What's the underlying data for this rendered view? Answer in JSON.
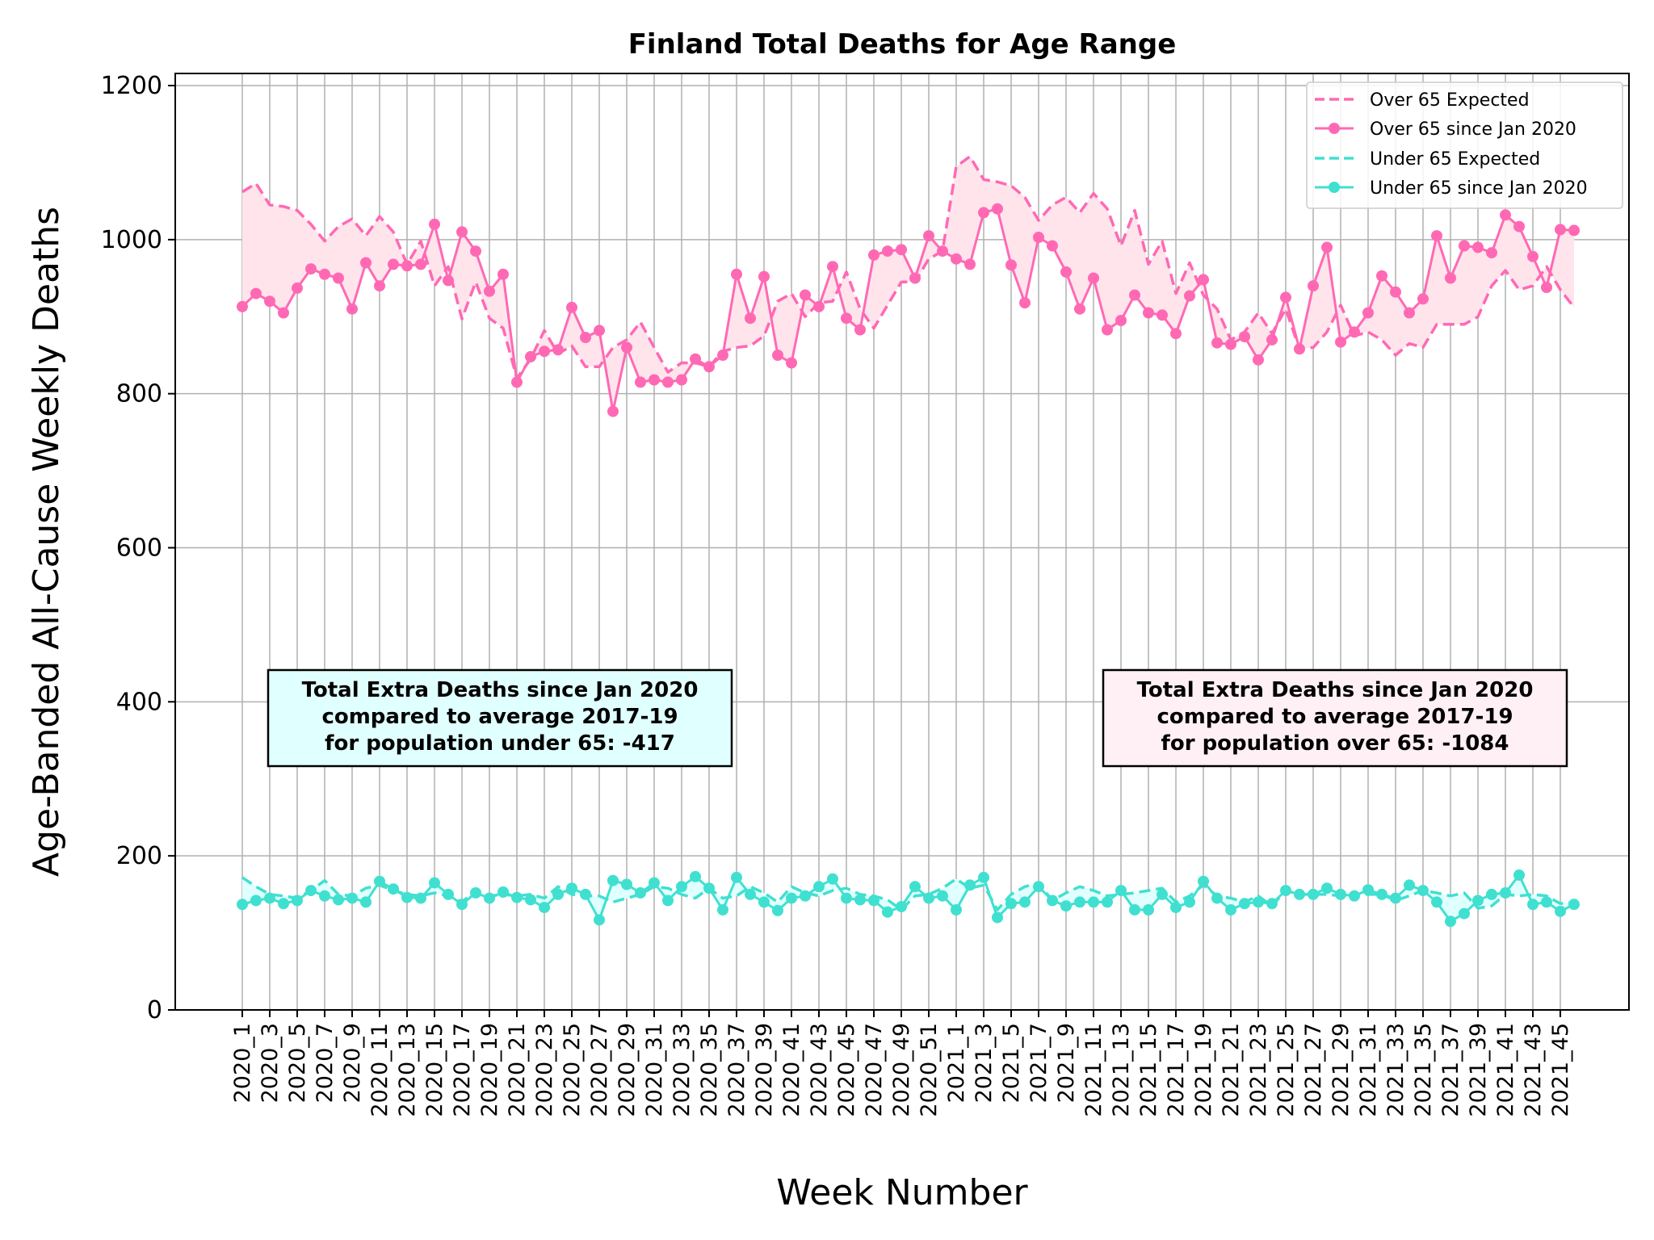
{
  "chart_data": {
    "type": "line",
    "title": "Finland Total Deaths for Age Range",
    "xlabel": "Week Number",
    "ylabel": "Age-Banded All-Cause Weekly Deaths",
    "ylim": [
      0,
      1200
    ],
    "yticks": [
      0,
      200,
      400,
      600,
      800,
      1000,
      1200
    ],
    "grid": true,
    "legend_position": "top-right",
    "colors": {
      "over65": "#ff69b4",
      "under65": "#40e0d0",
      "over65_fill": "#ffe4ec",
      "under65_fill": "#e0ffff",
      "grid": "#b0b0b0"
    },
    "x": [
      "2020_1",
      "2020_2",
      "2020_3",
      "2020_4",
      "2020_5",
      "2020_6",
      "2020_7",
      "2020_8",
      "2020_9",
      "2020_10",
      "2020_11",
      "2020_12",
      "2020_13",
      "2020_14",
      "2020_15",
      "2020_16",
      "2020_17",
      "2020_18",
      "2020_19",
      "2020_20",
      "2020_21",
      "2020_22",
      "2020_23",
      "2020_24",
      "2020_25",
      "2020_26",
      "2020_27",
      "2020_28",
      "2020_29",
      "2020_30",
      "2020_31",
      "2020_32",
      "2020_33",
      "2020_34",
      "2020_35",
      "2020_36",
      "2020_37",
      "2020_38",
      "2020_39",
      "2020_40",
      "2020_41",
      "2020_42",
      "2020_43",
      "2020_44",
      "2020_45",
      "2020_46",
      "2020_47",
      "2020_48",
      "2020_49",
      "2020_50",
      "2020_51",
      "2020_52",
      "2021_1",
      "2021_2",
      "2021_3",
      "2021_4",
      "2021_5",
      "2021_6",
      "2021_7",
      "2021_8",
      "2021_9",
      "2021_10",
      "2021_11",
      "2021_12",
      "2021_13",
      "2021_14",
      "2021_15",
      "2021_16",
      "2021_17",
      "2021_18",
      "2021_19",
      "2021_20",
      "2021_21",
      "2021_22",
      "2021_23",
      "2021_24",
      "2021_25",
      "2021_26",
      "2021_27",
      "2021_28",
      "2021_29",
      "2021_30",
      "2021_31",
      "2021_32",
      "2021_33",
      "2021_34",
      "2021_35",
      "2021_36",
      "2021_37",
      "2021_38",
      "2021_39",
      "2021_40",
      "2021_41",
      "2021_42",
      "2021_43",
      "2021_44",
      "2021_45",
      "2021_46"
    ],
    "xtick_labels": [
      "2020_1",
      "2020_3",
      "2020_5",
      "2020_7",
      "2020_9",
      "2020_11",
      "2020_13",
      "2020_15",
      "2020_17",
      "2020_19",
      "2020_21",
      "2020_23",
      "2020_25",
      "2020_27",
      "2020_29",
      "2020_31",
      "2020_33",
      "2020_35",
      "2020_37",
      "2020_39",
      "2020_41",
      "2020_43",
      "2020_45",
      "2020_47",
      "2020_49",
      "2020_51",
      "2021_1",
      "2021_3",
      "2021_5",
      "2021_7",
      "2021_9",
      "2021_11",
      "2021_13",
      "2021_15",
      "2021_17",
      "2021_19",
      "2021_21",
      "2021_23",
      "2021_25",
      "2021_27",
      "2021_29",
      "2021_31",
      "2021_33",
      "2021_35",
      "2021_37",
      "2021_39",
      "2021_41",
      "2021_43",
      "2021_45"
    ],
    "series": [
      {
        "name": "Over 65 Expected",
        "style": "dashed",
        "values": [
          1062,
          1073,
          1045,
          1043,
          1038,
          1020,
          998,
          1017,
          1027,
          1005,
          1030,
          1010,
          968,
          998,
          940,
          965,
          897,
          945,
          898,
          885,
          820,
          845,
          882,
          852,
          862,
          835,
          835,
          860,
          870,
          893,
          860,
          828,
          840,
          840,
          835,
          855,
          860,
          862,
          875,
          920,
          930,
          900,
          918,
          920,
          958,
          910,
          885,
          915,
          945,
          945,
          975,
          985,
          1095,
          1108,
          1078,
          1075,
          1070,
          1055,
          1025,
          1045,
          1055,
          1035,
          1060,
          1040,
          992,
          1038,
          968,
          998,
          930,
          970,
          928,
          910,
          870,
          880,
          905,
          878,
          910,
          858,
          860,
          880,
          915,
          875,
          880,
          870,
          850,
          865,
          860,
          890,
          890,
          890,
          900,
          940,
          960,
          935,
          940,
          965,
          935,
          912
        ]
      },
      {
        "name": "Over 65 since Jan 2020",
        "style": "solid-markers",
        "values": [
          913,
          930,
          920,
          905,
          937,
          962,
          955,
          950,
          910,
          970,
          940,
          968,
          966,
          968,
          1020,
          947,
          1010,
          985,
          933,
          955,
          815,
          848,
          855,
          857,
          912,
          873,
          882,
          777,
          860,
          815,
          818,
          815,
          818,
          845,
          835,
          850,
          955,
          898,
          952,
          850,
          840,
          928,
          913,
          965,
          898,
          883,
          980,
          985,
          987,
          950,
          1005,
          985,
          975,
          968,
          1035,
          1040,
          967,
          918,
          1003,
          992,
          958,
          910,
          950,
          883,
          895,
          928,
          905,
          902,
          878,
          927,
          948,
          866,
          864,
          874,
          844,
          870,
          925,
          858,
          940,
          990,
          867,
          880,
          905,
          953,
          932,
          905,
          923,
          1005,
          950,
          992,
          990,
          983,
          1032,
          1017,
          978,
          938,
          1013,
          1012
        ]
      },
      {
        "name": "Under 65 Expected",
        "style": "dashed",
        "values": [
          172,
          160,
          150,
          148,
          145,
          155,
          168,
          150,
          148,
          158,
          162,
          155,
          150,
          148,
          152,
          148,
          140,
          155,
          148,
          150,
          148,
          150,
          145,
          160,
          150,
          148,
          148,
          140,
          145,
          150,
          160,
          158,
          150,
          145,
          158,
          145,
          148,
          160,
          152,
          140,
          160,
          152,
          148,
          155,
          158,
          150,
          148,
          143,
          130,
          148,
          150,
          158,
          170,
          158,
          162,
          130,
          150,
          160,
          165,
          142,
          152,
          160,
          155,
          148,
          150,
          152,
          155,
          158,
          140,
          148,
          162,
          148,
          145,
          140,
          148,
          135,
          155,
          150,
          150,
          150,
          148,
          150,
          150,
          150,
          142,
          148,
          155,
          152,
          148,
          152,
          132,
          135,
          150,
          148,
          150,
          148,
          138,
          140
        ]
      },
      {
        "name": "Under 65 since Jan 2020",
        "style": "solid-markers",
        "values": [
          137,
          142,
          145,
          138,
          142,
          155,
          148,
          143,
          145,
          140,
          167,
          157,
          146,
          145,
          165,
          150,
          137,
          152,
          145,
          153,
          146,
          143,
          133,
          150,
          158,
          150,
          117,
          168,
          163,
          152,
          165,
          142,
          160,
          173,
          158,
          130,
          172,
          150,
          140,
          129,
          145,
          148,
          160,
          170,
          145,
          143,
          142,
          127,
          134,
          160,
          145,
          148,
          130,
          162,
          172,
          120,
          138,
          140,
          160,
          142,
          135,
          140,
          140,
          140,
          155,
          130,
          130,
          150,
          133,
          140,
          167,
          145,
          130,
          138,
          140,
          138,
          155,
          150,
          150,
          158,
          150,
          148,
          156,
          150,
          145,
          162,
          155,
          140,
          115,
          125,
          142,
          150,
          152,
          175,
          137,
          140,
          128,
          137
        ]
      }
    ],
    "annotations": [
      {
        "side": "left",
        "lines": [
          "Total Extra Deaths since Jan 2020",
          "compared to average 2017-19",
          "for population under 65: -417"
        ]
      },
      {
        "side": "right",
        "lines": [
          "Total Extra Deaths since Jan 2020",
          "compared to average 2017-19",
          "for population over 65: -1084"
        ]
      }
    ],
    "legend": [
      "Over 65 Expected",
      "Over 65 since Jan 2020",
      "Under 65 Expected",
      "Under 65 since Jan 2020"
    ]
  }
}
